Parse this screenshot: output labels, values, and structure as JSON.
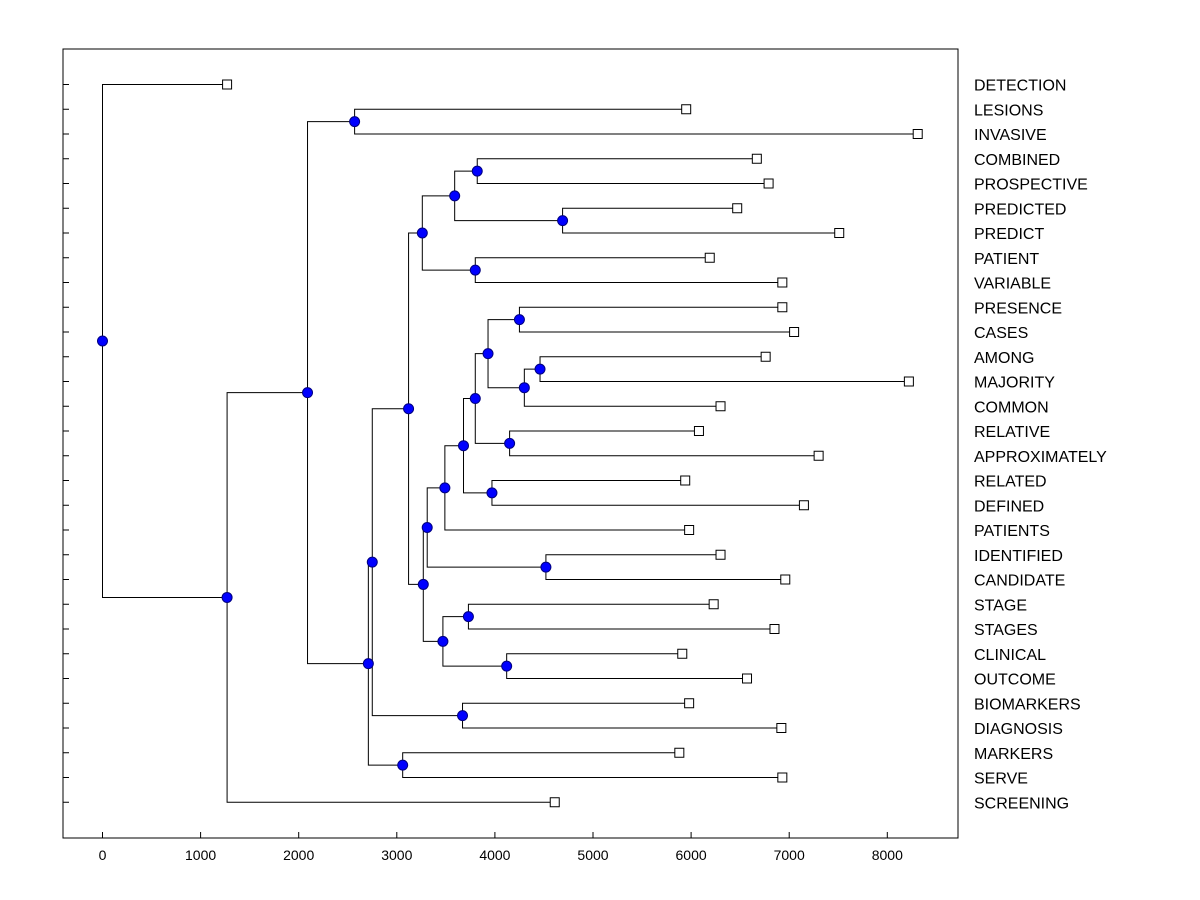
{
  "chart_data": {
    "type": "dendrogram",
    "title": "",
    "xlabel": "",
    "ylabel": "",
    "xlim": [
      -400,
      8700
    ],
    "x_ticks": [
      0,
      1000,
      2000,
      3000,
      4000,
      5000,
      6000,
      7000,
      8000
    ],
    "leaves": [
      {
        "label": "DETECTION",
        "value": 1270
      },
      {
        "label": "LESIONS",
        "value": 5950
      },
      {
        "label": "INVASIVE",
        "value": 8310
      },
      {
        "label": "COMBINED",
        "value": 6670
      },
      {
        "label": "PROSPECTIVE",
        "value": 6790
      },
      {
        "label": "PREDICTED",
        "value": 6470
      },
      {
        "label": "PREDICT",
        "value": 7510
      },
      {
        "label": "PATIENT",
        "value": 6190
      },
      {
        "label": "VARIABLE",
        "value": 6930
      },
      {
        "label": "PRESENCE",
        "value": 6930
      },
      {
        "label": "CASES",
        "value": 7050
      },
      {
        "label": "AMONG",
        "value": 6760
      },
      {
        "label": "MAJORITY",
        "value": 8220
      },
      {
        "label": "COMMON",
        "value": 6300
      },
      {
        "label": "RELATIVE",
        "value": 6080
      },
      {
        "label": "APPROXIMATELY",
        "value": 7300
      },
      {
        "label": "RELATED",
        "value": 5940
      },
      {
        "label": "DEFINED",
        "value": 7150
      },
      {
        "label": "PATIENTS",
        "value": 5980
      },
      {
        "label": "IDENTIFIED",
        "value": 6300
      },
      {
        "label": "CANDIDATE",
        "value": 6960
      },
      {
        "label": "STAGE",
        "value": 6230
      },
      {
        "label": "STAGES",
        "value": 6850
      },
      {
        "label": "CLINICAL",
        "value": 5910
      },
      {
        "label": "OUTCOME",
        "value": 6570
      },
      {
        "label": "BIOMARKERS",
        "value": 5980
      },
      {
        "label": "DIAGNOSIS",
        "value": 6920
      },
      {
        "label": "MARKERS",
        "value": 5880
      },
      {
        "label": "SERVE",
        "value": 6930
      },
      {
        "label": "SCREENING",
        "value": 4610
      }
    ],
    "merges": [
      {
        "id": "n1",
        "value": 2570,
        "children": [
          "LESIONS",
          "INVASIVE"
        ]
      },
      {
        "id": "n2",
        "value": 3820,
        "children": [
          "COMBINED",
          "PROSPECTIVE"
        ]
      },
      {
        "id": "n3",
        "value": 4690,
        "children": [
          "PREDICTED",
          "PREDICT"
        ]
      },
      {
        "id": "n4",
        "value": 3590,
        "children": [
          "n2",
          "n3"
        ]
      },
      {
        "id": "n5",
        "value": 3800,
        "children": [
          "PATIENT",
          "VARIABLE"
        ]
      },
      {
        "id": "n6",
        "value": 3260,
        "children": [
          "n4",
          "n5"
        ]
      },
      {
        "id": "n7",
        "value": 4250,
        "children": [
          "PRESENCE",
          "CASES"
        ]
      },
      {
        "id": "n8",
        "value": 4460,
        "children": [
          "AMONG",
          "MAJORITY"
        ]
      },
      {
        "id": "n9",
        "value": 4300,
        "children": [
          "n8",
          "COMMON"
        ]
      },
      {
        "id": "n10",
        "value": 3930,
        "children": [
          "n7",
          "n9"
        ]
      },
      {
        "id": "n11",
        "value": 4150,
        "children": [
          "RELATIVE",
          "APPROXIMATELY"
        ]
      },
      {
        "id": "n12",
        "value": 3800,
        "children": [
          "n10",
          "n11"
        ]
      },
      {
        "id": "n13",
        "value": 3970,
        "children": [
          "RELATED",
          "DEFINED"
        ]
      },
      {
        "id": "n14",
        "value": 3680,
        "children": [
          "n12",
          "n13"
        ]
      },
      {
        "id": "n15",
        "value": 3490,
        "children": [
          "n14",
          "PATIENTS"
        ]
      },
      {
        "id": "n16",
        "value": 4520,
        "children": [
          "IDENTIFIED",
          "CANDIDATE"
        ]
      },
      {
        "id": "n17",
        "value": 3310,
        "children": [
          "n15",
          "n16"
        ]
      },
      {
        "id": "n18",
        "value": 3730,
        "children": [
          "STAGE",
          "STAGES"
        ]
      },
      {
        "id": "n19",
        "value": 4120,
        "children": [
          "CLINICAL",
          "OUTCOME"
        ]
      },
      {
        "id": "n20",
        "value": 3470,
        "children": [
          "n18",
          "n19"
        ]
      },
      {
        "id": "n21",
        "value": 3270,
        "children": [
          "n17",
          "n20"
        ]
      },
      {
        "id": "n22",
        "value": 3120,
        "children": [
          "n6",
          "n21"
        ]
      },
      {
        "id": "n23",
        "value": 3670,
        "children": [
          "BIOMARKERS",
          "DIAGNOSIS"
        ]
      },
      {
        "id": "n24",
        "value": 2750,
        "children": [
          "n22",
          "n23"
        ]
      },
      {
        "id": "n25",
        "value": 3060,
        "children": [
          "MARKERS",
          "SERVE"
        ]
      },
      {
        "id": "n26",
        "value": 2710,
        "children": [
          "n24",
          "n25"
        ]
      },
      {
        "id": "n27",
        "value": 2090,
        "children": [
          "n1",
          "n26"
        ]
      },
      {
        "id": "n28",
        "value": 1270,
        "children": [
          "n27",
          "SCREENING"
        ]
      },
      {
        "id": "n29",
        "value": 0,
        "children": [
          "DETECTION",
          "n28"
        ]
      }
    ],
    "colors": {
      "node_fill": "#0000ff",
      "node_stroke": "#000080",
      "line": "#000000",
      "leaf_marker_fill": "#ffffff"
    }
  }
}
